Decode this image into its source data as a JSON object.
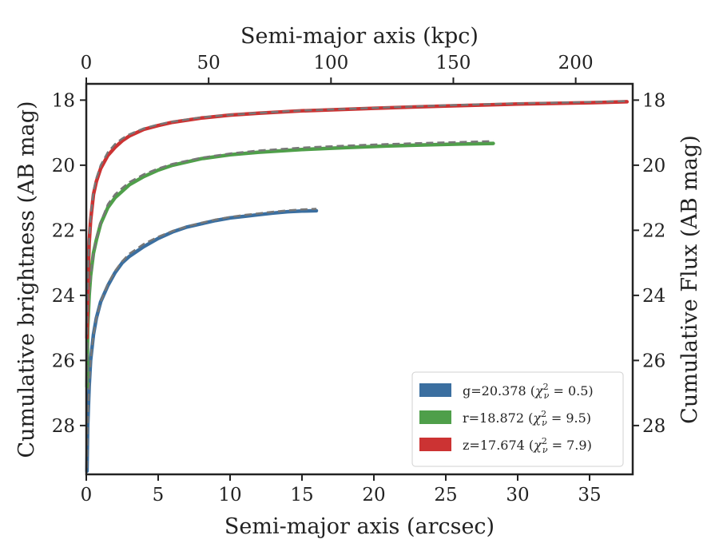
{
  "chart_data": {
    "type": "line",
    "xlabel": "Semi-major axis (arcsec)",
    "xlabel_top": "Semi-major axis (kpc)",
    "ylabel": "Cumulative brightness (AB mag)",
    "ylabel_right": "Cumulative Flux (AB mag)",
    "xlim": [
      0,
      38
    ],
    "ylim": [
      29.5,
      17.5
    ],
    "y_inverted": true,
    "x_ticks": [
      0,
      5,
      10,
      15,
      20,
      25,
      30,
      35
    ],
    "x_tick_labels": [
      "0",
      "5",
      "10",
      "15",
      "20",
      "25",
      "30",
      "35"
    ],
    "x_top_ticks": [
      0,
      50,
      100,
      150,
      200
    ],
    "x_top_tick_labels": [
      "0",
      "50",
      "100",
      "150",
      "200"
    ],
    "x_top_max_kpc": 223.3,
    "y_ticks": [
      18,
      20,
      22,
      24,
      26,
      28
    ],
    "y_tick_labels": [
      "18",
      "20",
      "22",
      "24",
      "26",
      "28"
    ],
    "grid": false,
    "legend_position": "bottom-right",
    "series": [
      {
        "name": "g=20.378 ($\\chi^2_\\nu = 0.5$)",
        "label_prefix": "g=20.378 (",
        "label_suffix": " = 0.5)",
        "color": "#3b6fa0",
        "x": [
          0.05,
          0.1,
          0.2,
          0.3,
          0.5,
          0.7,
          1.0,
          1.5,
          2.0,
          2.5,
          3.0,
          4.0,
          5.0,
          6.0,
          7.0,
          8.0,
          9.0,
          10.0,
          11.0,
          12.0,
          13.0,
          14.0,
          15.0,
          16.0
        ],
        "y": [
          29.4,
          28.0,
          26.8,
          26.0,
          25.2,
          24.7,
          24.2,
          23.7,
          23.3,
          23.0,
          22.8,
          22.5,
          22.25,
          22.05,
          21.9,
          21.8,
          21.7,
          21.62,
          21.57,
          21.52,
          21.47,
          21.43,
          21.41,
          21.4
        ],
        "model_x": [
          0.05,
          0.1,
          0.2,
          0.3,
          0.5,
          0.7,
          1.0,
          1.5,
          2.0,
          2.5,
          3.0,
          4.0,
          5.0,
          6.0,
          7.0,
          8.0,
          9.0,
          10.0,
          11.0,
          12.0,
          13.0,
          14.0,
          15.0,
          16.0
        ],
        "model_y": [
          29.3,
          28.0,
          26.8,
          26.0,
          25.2,
          24.7,
          24.2,
          23.65,
          23.25,
          22.95,
          22.72,
          22.42,
          22.2,
          22.02,
          21.88,
          21.77,
          21.67,
          21.59,
          21.53,
          21.48,
          21.43,
          21.39,
          21.36,
          21.34
        ]
      },
      {
        "name": "r=18.872 ($\\chi^2_\\nu = 9.5$)",
        "label_prefix": "r=18.872 (",
        "label_suffix": " = 9.5)",
        "color": "#4f9f4a",
        "x": [
          0.05,
          0.1,
          0.2,
          0.3,
          0.5,
          0.7,
          1.0,
          1.5,
          2.0,
          2.5,
          3.0,
          4.0,
          5.0,
          6.0,
          8.0,
          10.0,
          12.0,
          15.0,
          18.0,
          21.0,
          24.0,
          26.0,
          28.3
        ],
        "y": [
          26.8,
          25.0,
          24.0,
          23.4,
          22.7,
          22.3,
          21.8,
          21.3,
          21.0,
          20.8,
          20.6,
          20.35,
          20.15,
          20.0,
          19.8,
          19.68,
          19.6,
          19.52,
          19.46,
          19.41,
          19.37,
          19.35,
          19.33
        ],
        "model_x": [
          0.05,
          0.1,
          0.2,
          0.3,
          0.5,
          0.7,
          1.0,
          1.5,
          2.0,
          2.5,
          3.0,
          4.0,
          5.0,
          6.0,
          8.0,
          10.0,
          12.0,
          15.0,
          18.0,
          21.0,
          24.0,
          26.0,
          28.3
        ],
        "model_y": [
          26.7,
          25.0,
          24.0,
          23.4,
          22.7,
          22.25,
          21.75,
          21.2,
          20.9,
          20.7,
          20.52,
          20.28,
          20.1,
          19.96,
          19.77,
          19.64,
          19.55,
          19.46,
          19.4,
          19.35,
          19.31,
          19.29,
          19.26
        ]
      },
      {
        "name": "z=17.674 ($\\chi^2_\\nu = 7.9$)",
        "label_prefix": "z=17.674 (",
        "label_suffix": " = 7.9)",
        "color": "#cc3333",
        "x": [
          0.05,
          0.1,
          0.2,
          0.3,
          0.5,
          0.7,
          1.0,
          1.5,
          2.0,
          2.5,
          3.0,
          4.0,
          5.0,
          6.0,
          8.0,
          10.0,
          12.0,
          15.0,
          20.0,
          25.0,
          30.0,
          35.0,
          37.6
        ],
        "y": [
          25.3,
          23.8,
          22.4,
          21.7,
          20.9,
          20.5,
          20.1,
          19.7,
          19.45,
          19.25,
          19.1,
          18.9,
          18.78,
          18.68,
          18.55,
          18.46,
          18.4,
          18.33,
          18.25,
          18.18,
          18.12,
          18.08,
          18.05
        ],
        "model_x": [
          0.05,
          0.1,
          0.2,
          0.3,
          0.5,
          0.7,
          1.0,
          1.5,
          2.0,
          2.5,
          3.0,
          4.0,
          5.0,
          6.0,
          8.0,
          10.0,
          12.0,
          15.0,
          20.0,
          25.0,
          30.0,
          35.0,
          37.6
        ],
        "model_y": [
          25.2,
          23.7,
          22.3,
          21.6,
          20.8,
          20.4,
          20.0,
          19.6,
          19.35,
          19.18,
          19.05,
          18.87,
          18.75,
          18.66,
          18.53,
          18.45,
          18.39,
          18.32,
          18.24,
          18.16,
          18.1,
          18.06,
          18.03
        ]
      }
    ],
    "model_line_color": "#777777"
  }
}
